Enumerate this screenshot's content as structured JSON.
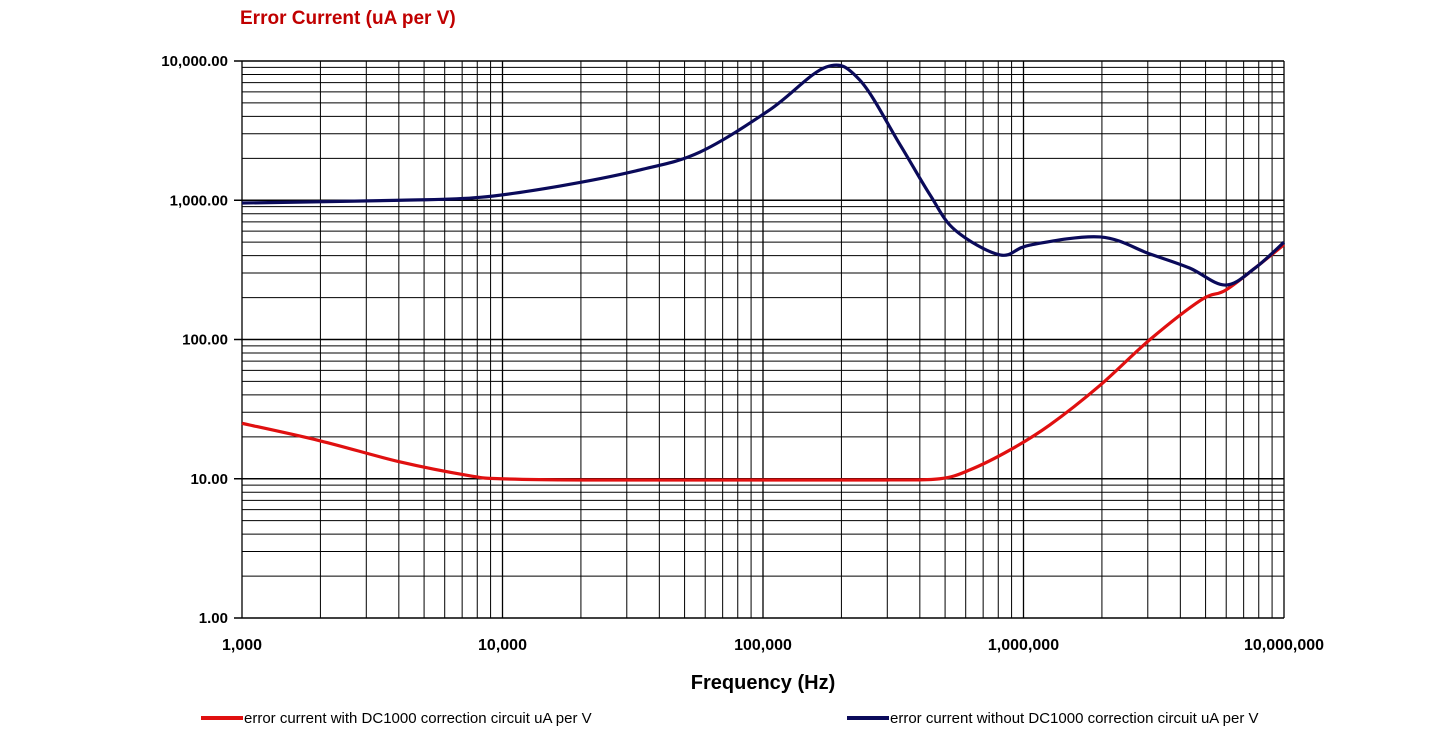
{
  "chart_data": {
    "type": "line",
    "title": "Error Current (uA per V)",
    "xlabel": "Frequency (Hz)",
    "ylabel": "",
    "xscale": "log",
    "yscale": "log",
    "xlim": [
      1000,
      10000000
    ],
    "ylim": [
      1,
      10000
    ],
    "grid": true,
    "legend_position": "bottom",
    "x_ticks": [
      1000,
      10000,
      100000,
      1000000,
      10000000
    ],
    "x_tick_labels": [
      "1,000",
      "10,000",
      "100,000",
      "1,000,000",
      "10,000,000"
    ],
    "y_ticks": [
      1,
      10,
      100,
      1000,
      10000
    ],
    "y_tick_labels": [
      "1.00",
      "10.00",
      "100.00",
      "1,000.00",
      "10,000.00"
    ],
    "series": [
      {
        "name": "error current with DC1000 correction circuit uA per V",
        "color": "#e01010",
        "x": [
          1000,
          2000,
          4050,
          7500,
          9800,
          20000,
          100000,
          300000,
          478000,
          624000,
          888000,
          1260000,
          1970000,
          3060000,
          4800000,
          5940000,
          7740000,
          10000000
        ],
        "y": [
          25,
          18.7,
          13.2,
          10.5,
          10,
          9.8,
          9.8,
          9.8,
          10,
          11.6,
          16.1,
          24.3,
          47,
          100,
          192,
          225,
          326,
          480
        ]
      },
      {
        "name": "error current without DC1000 correction circuit uA per V",
        "color": "#0a0a5a",
        "x": [
          1000,
          4050,
          8200,
          16600,
          33700,
          57300,
          106000,
          175000,
          235000,
          336000,
          438000,
          546000,
          813000,
          1060000,
          1970000,
          3060000,
          4340000,
          5940000,
          7740000,
          10000000
        ],
        "y": [
          955,
          1000,
          1050,
          1265,
          1650,
          2220,
          4450,
          9060,
          7310,
          2500,
          1090,
          611,
          405,
          477,
          545,
          411,
          326,
          246,
          326,
          500
        ]
      }
    ]
  }
}
